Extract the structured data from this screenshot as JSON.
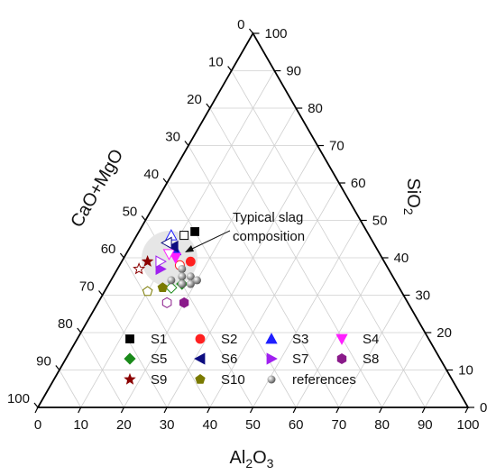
{
  "chart_data": {
    "type": "ternary-scatter",
    "axes": {
      "left": {
        "label": "CaO+MgO",
        "ticks": [
          "0",
          "10",
          "20",
          "30",
          "40",
          "50",
          "60",
          "70",
          "80",
          "90",
          "100"
        ]
      },
      "right": {
        "label_base": "SiO",
        "label_sub": "2",
        "ticks": [
          "0",
          "10",
          "20",
          "30",
          "40",
          "50",
          "60",
          "70",
          "80",
          "90",
          "100"
        ]
      },
      "bottom": {
        "label_base": "Al",
        "label_sub1": "2",
        "label_mid": "O",
        "label_sub2": "3",
        "ticks": [
          "0",
          "10",
          "20",
          "30",
          "40",
          "50",
          "60",
          "70",
          "80",
          "90",
          "100"
        ]
      }
    },
    "grid": true,
    "annotation": {
      "line1": "Typical slag",
      "line2": "composition"
    },
    "series": [
      {
        "name": "S1",
        "color": "#000000",
        "marker": "square",
        "points": [
          {
            "Al2O3": 13,
            "SiO2": 47,
            "CaO+MgO": 40,
            "filled": true
          },
          {
            "Al2O3": 11,
            "SiO2": 46,
            "CaO+MgO": 43,
            "filled": false
          }
        ]
      },
      {
        "name": "S2",
        "color": "#ff2020",
        "marker": "circle",
        "points": [
          {
            "Al2O3": 16,
            "SiO2": 39,
            "CaO+MgO": 45,
            "filled": true
          },
          {
            "Al2O3": 14,
            "SiO2": 38,
            "CaO+MgO": 48,
            "filled": false
          }
        ]
      },
      {
        "name": "S3",
        "color": "#1f1fff",
        "marker": "triangle-up",
        "points": [
          {
            "Al2O3": 11,
            "SiO2": 42,
            "CaO+MgO": 47,
            "filled": true
          },
          {
            "Al2O3": 8,
            "SiO2": 46,
            "CaO+MgO": 46,
            "filled": false
          }
        ]
      },
      {
        "name": "S4",
        "color": "#ff20ff",
        "marker": "triangle-down",
        "points": [
          {
            "Al2O3": 12,
            "SiO2": 40,
            "CaO+MgO": 48,
            "filled": true
          },
          {
            "Al2O3": 10,
            "SiO2": 41,
            "CaO+MgO": 49,
            "filled": false
          }
        ]
      },
      {
        "name": "S5",
        "color": "#1a8a1a",
        "marker": "diamond",
        "points": [
          {
            "Al2O3": 17,
            "SiO2": 33,
            "CaO+MgO": 50,
            "filled": true
          },
          {
            "Al2O3": 15,
            "SiO2": 32,
            "CaO+MgO": 53,
            "filled": false
          }
        ]
      },
      {
        "name": "S6",
        "color": "#0d0d80",
        "marker": "triangle-left",
        "points": [
          {
            "Al2O3": 10,
            "SiO2": 43,
            "CaO+MgO": 47,
            "filled": true
          },
          {
            "Al2O3": 8,
            "SiO2": 44,
            "CaO+MgO": 48,
            "filled": false
          }
        ]
      },
      {
        "name": "S7",
        "color": "#a020f0",
        "marker": "triangle-right",
        "points": [
          {
            "Al2O3": 10,
            "SiO2": 37,
            "CaO+MgO": 53,
            "filled": true
          },
          {
            "Al2O3": 9,
            "SiO2": 39,
            "CaO+MgO": 52,
            "filled": false
          }
        ]
      },
      {
        "name": "S8",
        "color": "#8a1a8a",
        "marker": "hexagon",
        "points": [
          {
            "Al2O3": 20,
            "SiO2": 28,
            "CaO+MgO": 52,
            "filled": true
          },
          {
            "Al2O3": 16,
            "SiO2": 28,
            "CaO+MgO": 56,
            "filled": false
          }
        ]
      },
      {
        "name": "S9",
        "color": "#8b0000",
        "marker": "star",
        "points": [
          {
            "Al2O3": 6,
            "SiO2": 39,
            "CaO+MgO": 55,
            "filled": true
          },
          {
            "Al2O3": 5,
            "SiO2": 37,
            "CaO+MgO": 58,
            "filled": false
          }
        ]
      },
      {
        "name": "S10",
        "color": "#7a7a00",
        "marker": "pentagon",
        "points": [
          {
            "Al2O3": 13,
            "SiO2": 32,
            "CaO+MgO": 55,
            "filled": true
          },
          {
            "Al2O3": 10,
            "SiO2": 31,
            "CaO+MgO": 59,
            "filled": false
          }
        ]
      },
      {
        "name": "references",
        "color": "#909090",
        "marker": "sphere",
        "points": [
          {
            "Al2O3": 15,
            "SiO2": 37,
            "CaO+MgO": 48,
            "filled": true
          },
          {
            "Al2O3": 16,
            "SiO2": 35,
            "CaO+MgO": 49,
            "filled": true
          },
          {
            "Al2O3": 18,
            "SiO2": 35,
            "CaO+MgO": 47,
            "filled": true
          },
          {
            "Al2O3": 19,
            "SiO2": 33,
            "CaO+MgO": 48,
            "filled": true
          },
          {
            "Al2O3": 17,
            "SiO2": 33,
            "CaO+MgO": 50,
            "filled": true
          },
          {
            "Al2O3": 20,
            "SiO2": 34,
            "CaO+MgO": 46,
            "filled": true
          },
          {
            "Al2O3": 14,
            "SiO2": 34,
            "CaO+MgO": 52,
            "filled": true
          }
        ]
      }
    ]
  }
}
